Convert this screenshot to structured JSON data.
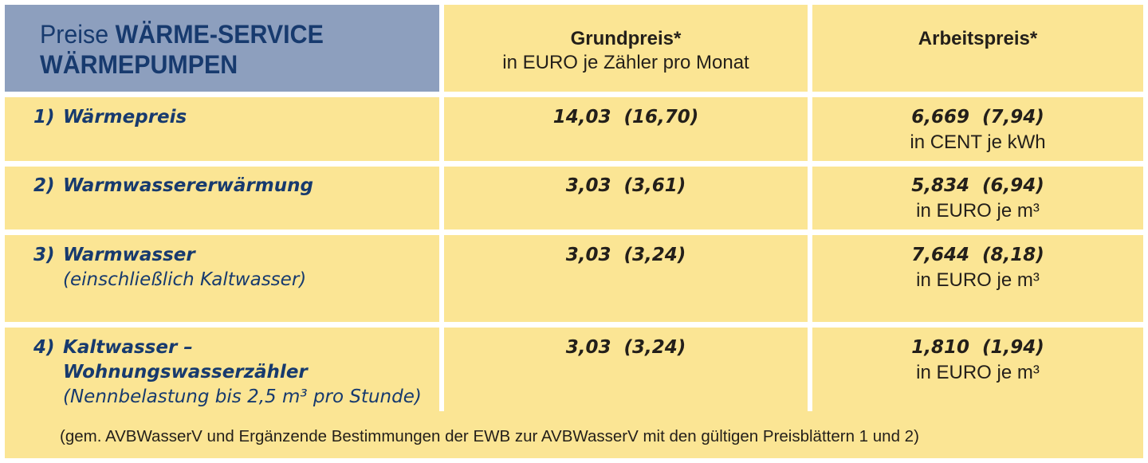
{
  "header": {
    "title_line1_prefix": "Preise ",
    "title_line1_bold": "WÄRME-SERVICE",
    "title_line2": "WÄRMEPUMPEN",
    "grundpreis_label": "Grundpreis*",
    "grundpreis_unit": "in EURO je Zähler pro Monat",
    "arbeitspreis_label": "Arbeitspreis*"
  },
  "rows": [
    {
      "num": "1)",
      "name": "Wärmepreis",
      "sub": "",
      "grund": "14,03  (16,70)",
      "arbeit": "6,669  (7,94)",
      "unit": "in CENT je kWh"
    },
    {
      "num": "2)",
      "name": "Warmwassererwärmung",
      "sub": "",
      "grund": "3,03  (3,61)",
      "arbeit": "5,834  (6,94)",
      "unit": "in EURO je m³"
    },
    {
      "num": "3)",
      "name": "Warmwasser",
      "sub": "(einschließlich Kaltwasser)",
      "grund": "3,03  (3,24)",
      "arbeit": "7,644  (8,18)",
      "unit": "in EURO je m³"
    },
    {
      "num": "4)",
      "name": "Kaltwasser –",
      "name2": "Wohnungswasserzähler",
      "sub": "(Nennbelastung bis 2,5 m³ pro Stunde)",
      "grund": "3,03  (3,24)",
      "arbeit": "1,810  (1,94)",
      "unit": "in EURO je m³"
    }
  ],
  "footnote": "(gem. AVBWasserV und Ergänzende Bestimmungen der EWB zur AVBWasserV mit den gültigen Preisblättern 1 und 2)",
  "colors": {
    "cell_bg": "#fbe594",
    "header_bg": "#8d9fbe",
    "label_text": "#173a6e",
    "body_text": "#231f1a"
  }
}
